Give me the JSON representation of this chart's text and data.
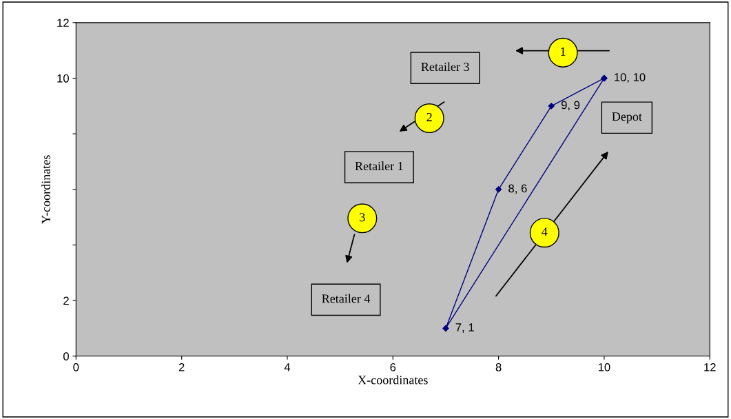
{
  "chart_data": {
    "type": "scatter",
    "xlabel": "X-coordinates",
    "ylabel": "Y-coordinates",
    "xlim": [
      0,
      12
    ],
    "xticks": [
      0,
      2,
      4,
      6,
      8,
      10,
      12
    ],
    "ylim": [
      0,
      12
    ],
    "yticks": [
      0,
      2,
      {
        "value": 4,
        "label": null
      },
      {
        "value": 6,
        "label": null
      },
      {
        "value": 8,
        "label": null
      },
      10,
      12
    ],
    "grid": false,
    "legend": false,
    "marker": "diamond",
    "line_style": "solid",
    "series": [
      {
        "color": "#000080",
        "x": [
          10,
          9,
          8,
          7,
          10
        ],
        "values": [
          10,
          9,
          6,
          1,
          10
        ],
        "value_labels": [
          "10, 10",
          "9, 9",
          "8, 6",
          "7, 1",
          null
        ]
      }
    ],
    "annotations": [
      "Retailer 3",
      "Depot",
      "Retailer 1",
      "Retailer 4",
      "1",
      "2",
      "3",
      "4"
    ]
  }
}
